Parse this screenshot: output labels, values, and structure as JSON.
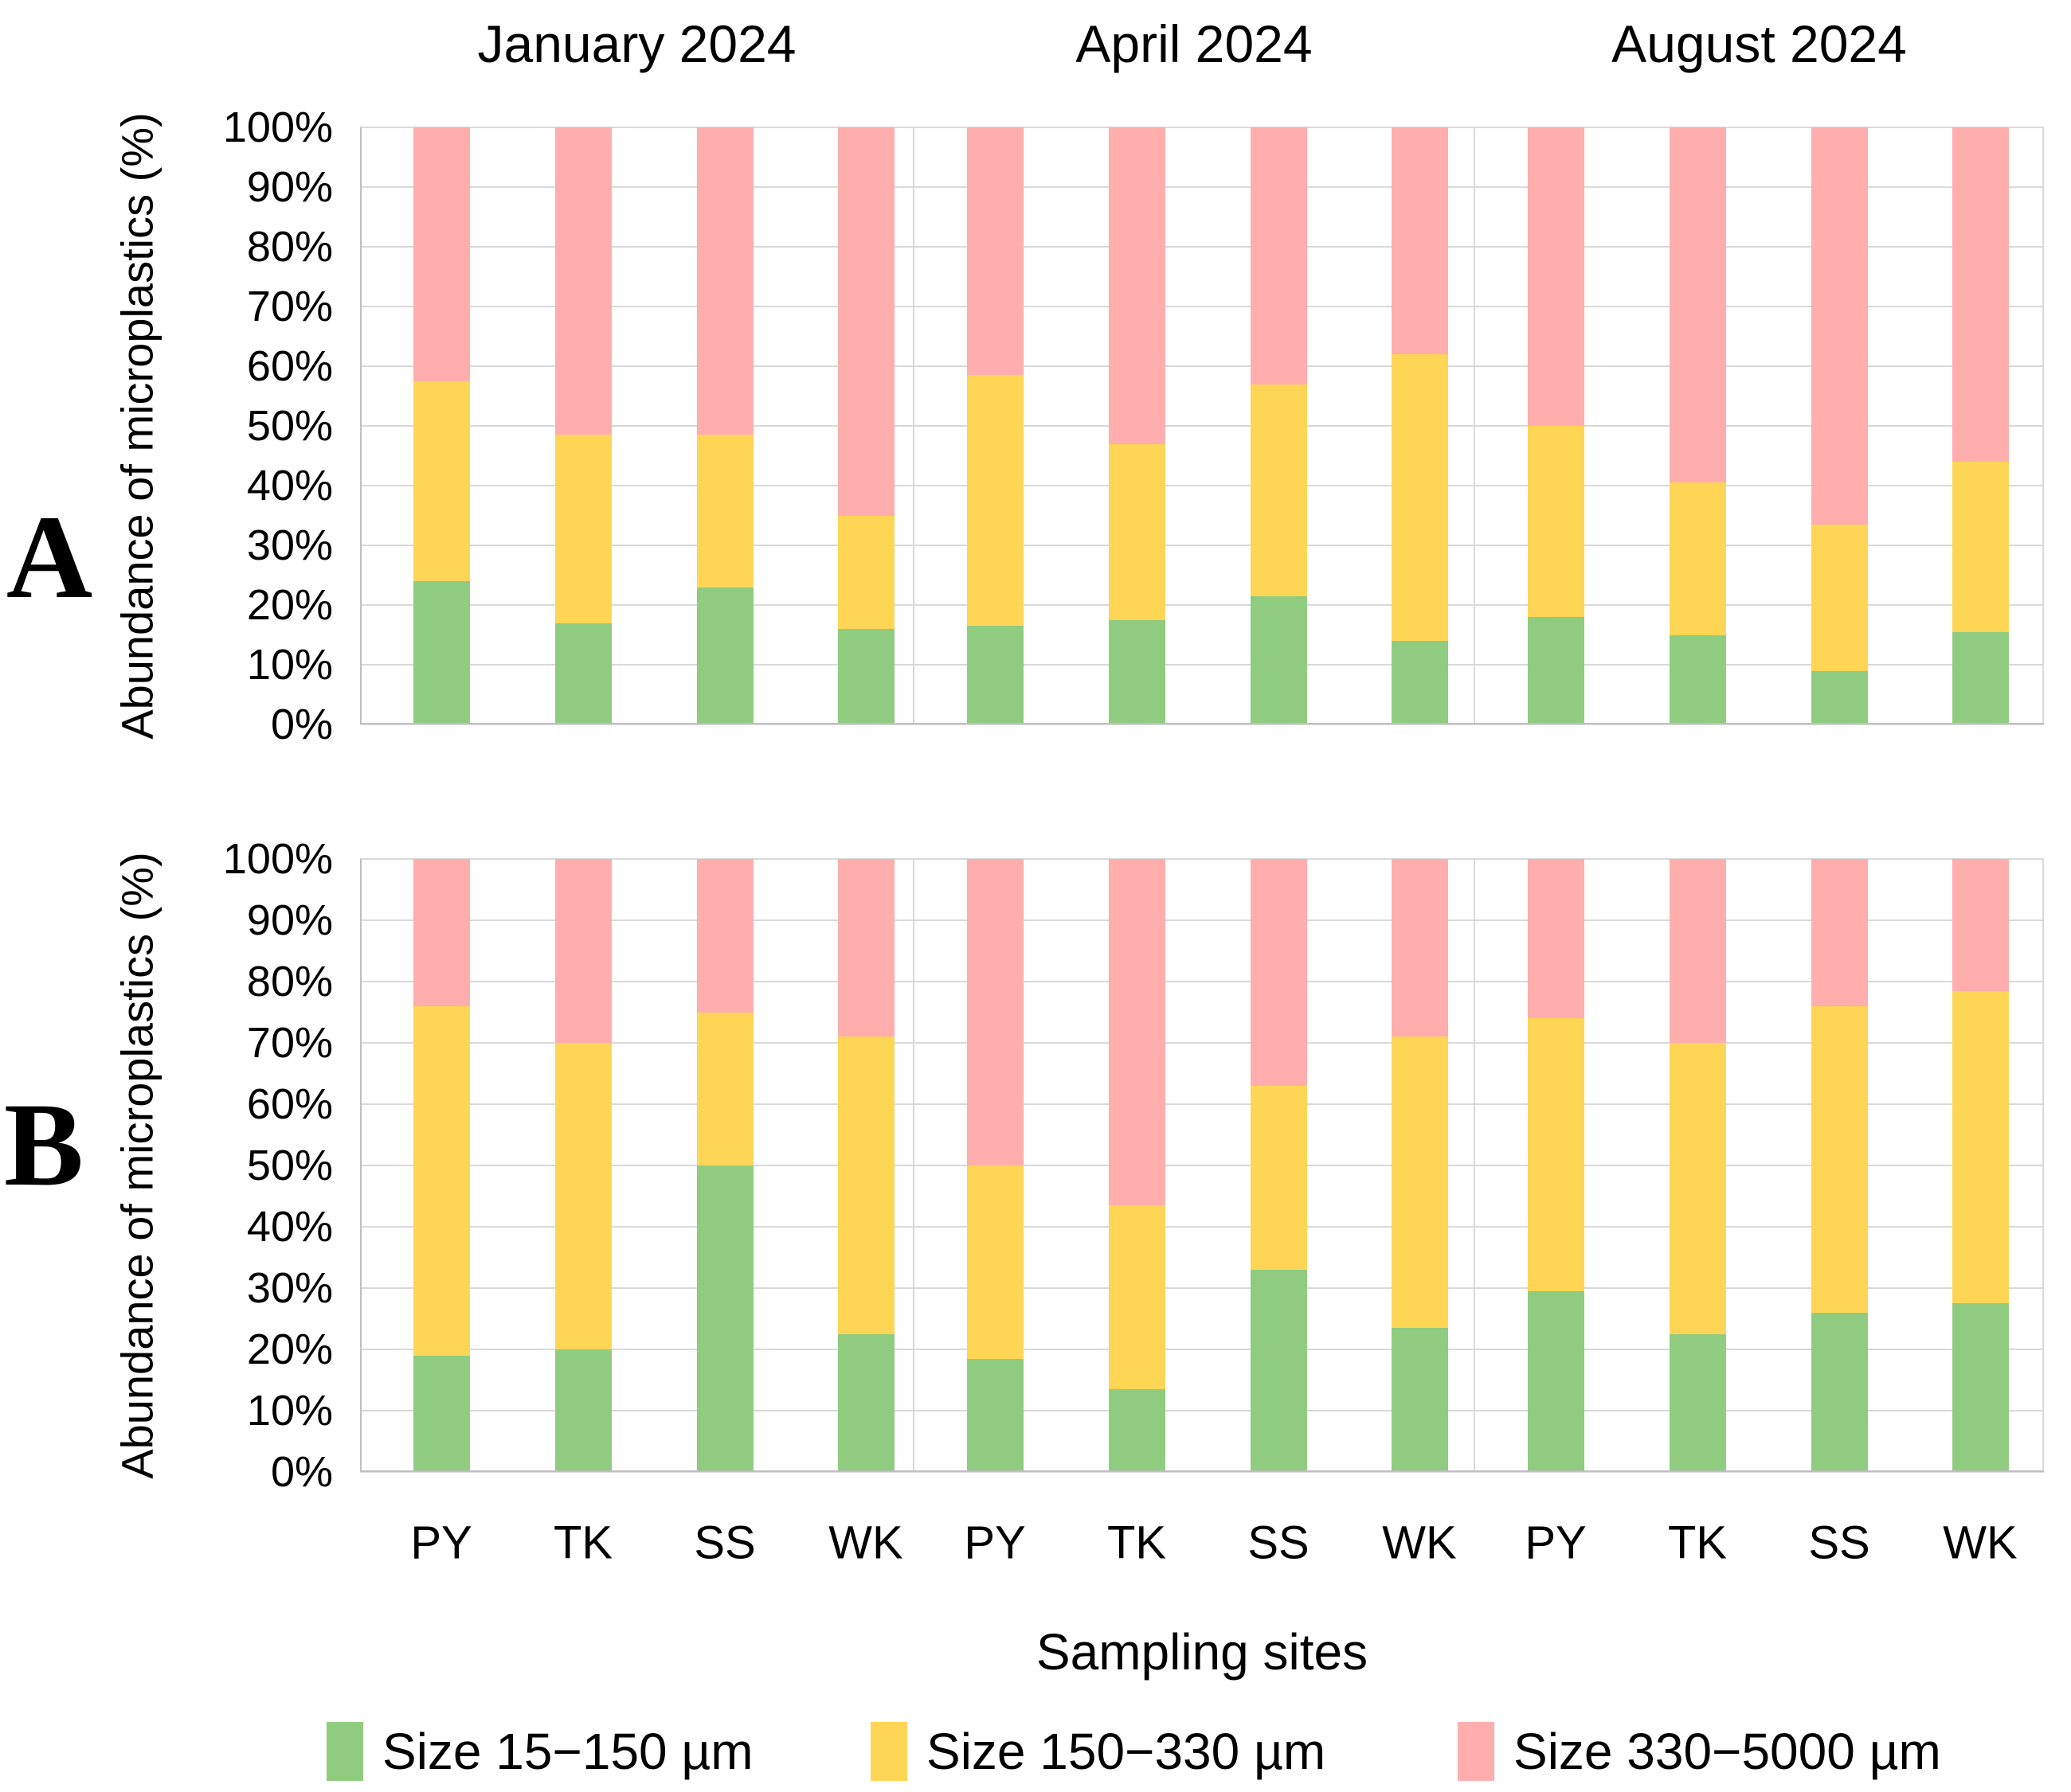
{
  "figure": {
    "xlabel": "Sampling sites",
    "ylabel": "Abundance of microplastics (%)",
    "months": [
      "January 2024",
      "April 2024",
      "August 2024"
    ],
    "sites": [
      "PY",
      "TK",
      "SS",
      "WK"
    ],
    "y_ticks": [
      "100%",
      "90%",
      "80%",
      "70%",
      "60%",
      "50%",
      "40%",
      "30%",
      "20%",
      "10%",
      "0%"
    ],
    "panel_letters": [
      "A",
      "B"
    ]
  },
  "legend": [
    {
      "label": "Size 15−150 µm",
      "color": "#90CC80"
    },
    {
      "label": "Size 150−330 µm",
      "color": "#FFD556"
    },
    {
      "label": "Size 330−5000 µm",
      "color": "#FFADAD"
    }
  ],
  "colors": {
    "gridline": "#D9D9D9",
    "axis": "#BFBFBF",
    "background": "#FFFFFF",
    "text": "#000000"
  },
  "chart_data": [
    {
      "type": "bar",
      "stacked": true,
      "units": "percent",
      "panel": "A",
      "ylim": [
        0,
        100
      ],
      "grid": true,
      "series_names": [
        "Size 15−150 µm",
        "Size 150−330 µm",
        "Size 330−5000 µm"
      ],
      "groups": [
        {
          "month": "January 2024",
          "categories": [
            "PY",
            "TK",
            "SS",
            "WK"
          ],
          "stacks": [
            [
              24,
              33.5,
              42.5
            ],
            [
              17,
              31.5,
              51.5
            ],
            [
              23,
              25.5,
              51.5
            ],
            [
              16,
              19,
              65
            ]
          ]
        },
        {
          "month": "April 2024",
          "categories": [
            "PY",
            "TK",
            "SS",
            "WK"
          ],
          "stacks": [
            [
              16.5,
              42,
              41.5
            ],
            [
              17.5,
              29.5,
              53
            ],
            [
              21.5,
              35.5,
              43
            ],
            [
              14,
              48,
              38
            ]
          ]
        },
        {
          "month": "August 2024",
          "categories": [
            "PY",
            "TK",
            "SS",
            "WK"
          ],
          "stacks": [
            [
              18,
              32,
              50
            ],
            [
              15,
              25.5,
              59.5
            ],
            [
              9,
              24.5,
              66.5
            ],
            [
              15.5,
              28.5,
              56
            ]
          ]
        }
      ]
    },
    {
      "type": "bar",
      "stacked": true,
      "units": "percent",
      "panel": "B",
      "ylim": [
        0,
        100
      ],
      "grid": true,
      "series_names": [
        "Size 15−150 µm",
        "Size 150−330 µm",
        "Size 330−5000 µm"
      ],
      "groups": [
        {
          "month": "January 2024",
          "categories": [
            "PY",
            "TK",
            "SS",
            "WK"
          ],
          "stacks": [
            [
              19,
              57,
              24
            ],
            [
              20,
              50,
              30
            ],
            [
              50,
              25,
              25
            ],
            [
              22.5,
              48.5,
              29
            ]
          ]
        },
        {
          "month": "April 2024",
          "categories": [
            "PY",
            "TK",
            "SS",
            "WK"
          ],
          "stacks": [
            [
              18.5,
              31.5,
              50
            ],
            [
              13.5,
              30,
              56.5
            ],
            [
              33,
              30,
              37
            ],
            [
              23.5,
              47.5,
              29
            ]
          ]
        },
        {
          "month": "August 2024",
          "categories": [
            "PY",
            "TK",
            "SS",
            "WK"
          ],
          "stacks": [
            [
              29.5,
              44.5,
              26
            ],
            [
              22.5,
              47.5,
              30
            ],
            [
              26,
              50,
              24
            ],
            [
              27.5,
              51,
              21.5
            ]
          ]
        }
      ]
    }
  ]
}
